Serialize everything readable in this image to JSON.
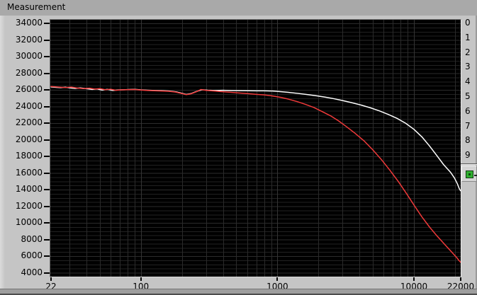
{
  "header": {
    "title": "Measurement"
  },
  "chart_data": {
    "type": "line",
    "title": "Measurement",
    "x_axis": {
      "scale": "log",
      "range": [
        22,
        22000
      ],
      "ticks": [
        {
          "value": 22,
          "label": "22"
        },
        {
          "value": 100,
          "label": "100"
        },
        {
          "value": 1000,
          "label": "1000"
        },
        {
          "value": 10000,
          "label": "10000"
        },
        {
          "value": 22000,
          "label": "22000"
        }
      ]
    },
    "y_axis": {
      "range": [
        4000,
        34000
      ],
      "tick_step": 2000,
      "minor_step": 500,
      "tick_labels": [
        "34000",
        "32000",
        "30000",
        "28000",
        "26000",
        "24000",
        "22000",
        "20000",
        "18000",
        "16000",
        "14000",
        "12000",
        "10000",
        "8000",
        "6000",
        "4000"
      ]
    },
    "right_axis": {
      "visible_labels": [
        "0",
        "1",
        "2",
        "3",
        "4",
        "5",
        "6",
        "7",
        "8",
        "9"
      ]
    },
    "plot_style": {
      "background": "#000000",
      "grid_minor_h": "#222222",
      "grid_major_h": "#2c2c2c",
      "grid_minor_v": "#2a2a2a",
      "grid_decade_v": "#343434"
    },
    "grid_v_frequencies": [
      30,
      40,
      50,
      60,
      70,
      80,
      90,
      100,
      200,
      300,
      400,
      500,
      600,
      700,
      800,
      900,
      1000,
      2000,
      3000,
      4000,
      5000,
      6000,
      7000,
      8000,
      9000,
      10000,
      20000
    ],
    "series": [
      {
        "name": "plot-0-white",
        "color": "#ffffff",
        "points": [
          [
            22,
            26350
          ],
          [
            24,
            26300
          ],
          [
            26,
            26270
          ],
          [
            28,
            26320
          ],
          [
            30,
            26240
          ],
          [
            33,
            26170
          ],
          [
            36,
            26230
          ],
          [
            40,
            26140
          ],
          [
            44,
            26050
          ],
          [
            48,
            26110
          ],
          [
            52,
            25970
          ],
          [
            57,
            26060
          ],
          [
            62,
            25930
          ],
          [
            68,
            25990
          ],
          [
            75,
            26010
          ],
          [
            82,
            26040
          ],
          [
            90,
            26060
          ],
          [
            100,
            26000
          ],
          [
            112,
            25960
          ],
          [
            126,
            25930
          ],
          [
            142,
            25900
          ],
          [
            160,
            25860
          ],
          [
            180,
            25770
          ],
          [
            200,
            25590
          ],
          [
            215,
            25450
          ],
          [
            232,
            25540
          ],
          [
            255,
            25800
          ],
          [
            280,
            26010
          ],
          [
            310,
            25960
          ],
          [
            350,
            25930
          ],
          [
            400,
            25950
          ],
          [
            460,
            25920
          ],
          [
            530,
            25900
          ],
          [
            610,
            25890
          ],
          [
            700,
            25880
          ],
          [
            800,
            25880
          ],
          [
            920,
            25860
          ],
          [
            1050,
            25790
          ],
          [
            1200,
            25700
          ],
          [
            1400,
            25580
          ],
          [
            1650,
            25440
          ],
          [
            1950,
            25280
          ],
          [
            2250,
            25120
          ],
          [
            2600,
            24930
          ],
          [
            3000,
            24710
          ],
          [
            3500,
            24460
          ],
          [
            4100,
            24170
          ],
          [
            4800,
            23840
          ],
          [
            5600,
            23460
          ],
          [
            6500,
            23040
          ],
          [
            7500,
            22580
          ],
          [
            8700,
            21980
          ],
          [
            10000,
            21250
          ],
          [
            11500,
            20300
          ],
          [
            13000,
            19250
          ],
          [
            14700,
            18100
          ],
          [
            16500,
            17000
          ],
          [
            18500,
            16100
          ],
          [
            19800,
            15400
          ],
          [
            20800,
            14700
          ],
          [
            21500,
            14100
          ],
          [
            21900,
            13880
          ],
          [
            22000,
            13850
          ]
        ]
      },
      {
        "name": "plot-1-red",
        "color": "#f03a3a",
        "points": [
          [
            22,
            26400
          ],
          [
            25,
            26330
          ],
          [
            28,
            26280
          ],
          [
            31,
            26330
          ],
          [
            34,
            26220
          ],
          [
            38,
            26150
          ],
          [
            42,
            26200
          ],
          [
            46,
            26100
          ],
          [
            50,
            26150
          ],
          [
            55,
            26010
          ],
          [
            60,
            26080
          ],
          [
            66,
            25950
          ],
          [
            72,
            26000
          ],
          [
            80,
            26020
          ],
          [
            90,
            26040
          ],
          [
            100,
            25980
          ],
          [
            112,
            25930
          ],
          [
            126,
            25890
          ],
          [
            142,
            25860
          ],
          [
            160,
            25830
          ],
          [
            180,
            25730
          ],
          [
            200,
            25550
          ],
          [
            215,
            25420
          ],
          [
            232,
            25510
          ],
          [
            255,
            25770
          ],
          [
            275,
            26040
          ],
          [
            300,
            25940
          ],
          [
            340,
            25870
          ],
          [
            390,
            25790
          ],
          [
            450,
            25710
          ],
          [
            520,
            25630
          ],
          [
            600,
            25550
          ],
          [
            700,
            25460
          ],
          [
            800,
            25390
          ],
          [
            920,
            25270
          ],
          [
            1050,
            25110
          ],
          [
            1200,
            24890
          ],
          [
            1400,
            24580
          ],
          [
            1600,
            24260
          ],
          [
            1850,
            23880
          ],
          [
            2100,
            23430
          ],
          [
            2450,
            22880
          ],
          [
            2800,
            22280
          ],
          [
            3200,
            21580
          ],
          [
            3700,
            20780
          ],
          [
            4300,
            19880
          ],
          [
            5000,
            18780
          ],
          [
            5800,
            17580
          ],
          [
            6700,
            16280
          ],
          [
            7700,
            14950
          ],
          [
            8800,
            13550
          ],
          [
            10000,
            12150
          ],
          [
            11400,
            10750
          ],
          [
            13000,
            9500
          ],
          [
            14800,
            8400
          ],
          [
            16800,
            7400
          ],
          [
            19000,
            6450
          ],
          [
            20500,
            5850
          ],
          [
            21300,
            5500
          ],
          [
            22000,
            5250
          ]
        ]
      }
    ]
  },
  "scale_legend": {
    "lock_icon_color": "#2fae2f"
  }
}
